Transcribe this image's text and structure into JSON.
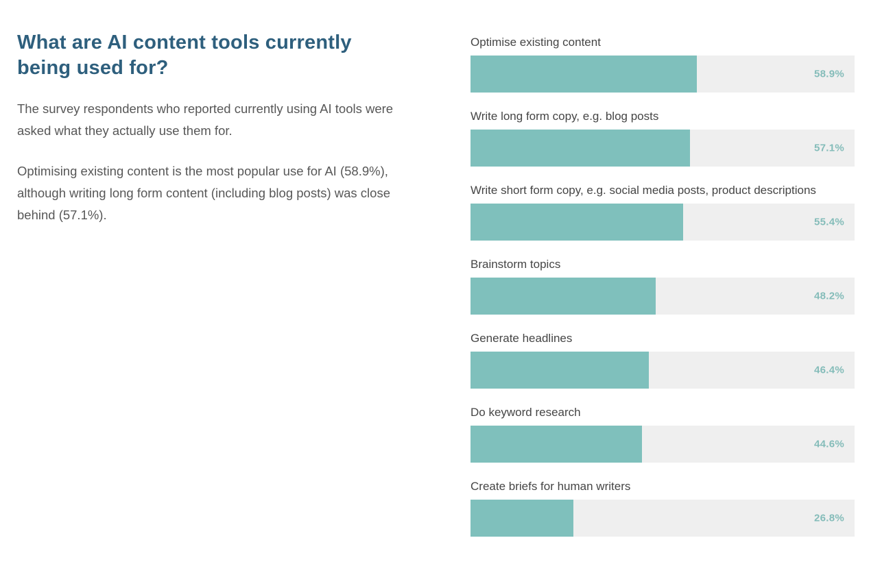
{
  "page": {
    "heading": "What are AI content tools currently being used for?",
    "paragraph1": "The survey respondents who reported currently using AI tools were asked what they actually use them for.",
    "paragraph2": "Optimising existing content is the most popular use for AI (58.9%), although writing long form content (including blog posts) was close behind (57.1%)."
  },
  "colors": {
    "heading": "#2e5f7d",
    "body_text": "#575757",
    "label_text": "#454545",
    "bar_fill": "#7fc0bc",
    "bar_track": "#efefef",
    "value_text": "#84bcb9"
  },
  "chart_data": {
    "type": "bar",
    "orientation": "horizontal",
    "title": "What are AI content tools currently being used for?",
    "xlabel": "",
    "ylabel": "",
    "xlim": [
      0,
      100
    ],
    "grid": false,
    "legend": false,
    "value_label_position": "inside-track-right",
    "categories": [
      "Optimise existing content",
      "Write long form copy, e.g. blog posts",
      "Write short form copy, e.g. social media posts, product descriptions",
      "Brainstorm topics",
      "Generate headlines",
      "Do keyword research",
      "Create briefs for human writers"
    ],
    "values": [
      58.9,
      57.1,
      55.4,
      48.2,
      46.4,
      44.6,
      26.8
    ],
    "value_labels": [
      "58.9%",
      "57.1%",
      "55.4%",
      "48.2%",
      "46.4%",
      "44.6%",
      "26.8%"
    ]
  }
}
